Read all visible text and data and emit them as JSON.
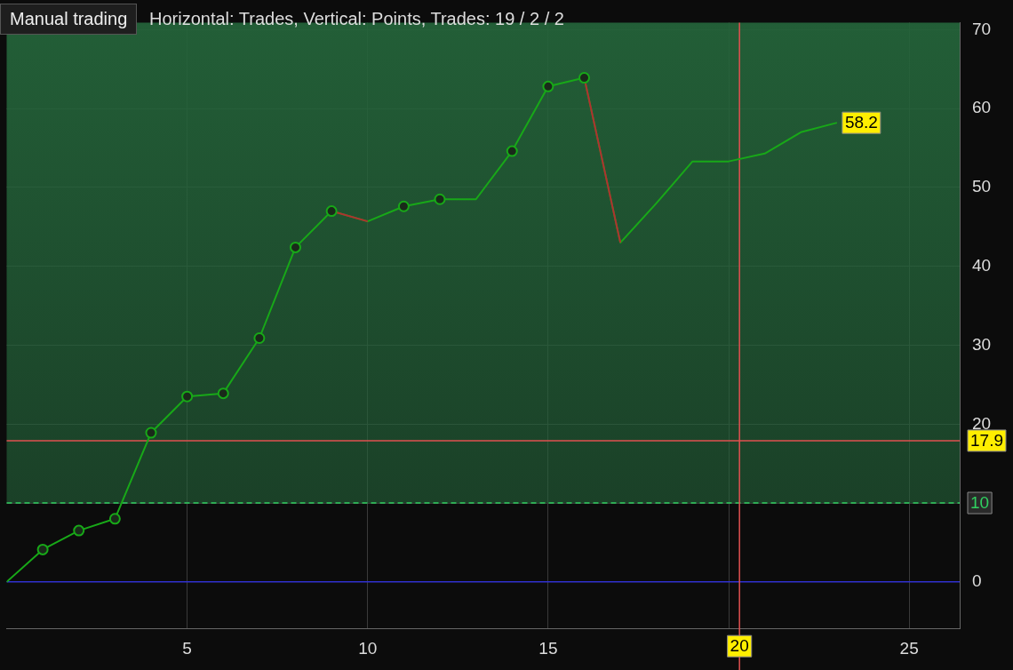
{
  "chart_data": {
    "type": "line",
    "title": "Manual trading",
    "subtitle": "Horizontal: Trades, Vertical: Points, Trades: 19 / 2 / 2",
    "x": [
      0,
      1,
      2,
      3,
      4,
      5,
      6,
      7,
      8,
      9,
      10,
      11,
      12,
      13,
      14,
      15,
      16,
      17,
      18,
      19,
      20,
      21,
      22,
      23
    ],
    "series": [
      {
        "type": "line",
        "color": "#18a818",
        "marker": "none",
        "value_labels": [
          null,
          null,
          null,
          null,
          null,
          null,
          null,
          null,
          null,
          null,
          null,
          null,
          null,
          null,
          null,
          null,
          null,
          null,
          null,
          null,
          null,
          null,
          null,
          "58.2"
        ],
        "values": [
          0,
          4.1,
          6.5,
          8.0,
          18.9,
          23.5,
          23.9,
          30.9,
          42.4,
          47.0,
          45.7,
          47.6,
          48.5,
          48.5,
          54.6,
          62.8,
          63.9,
          43.0,
          48.0,
          53.3,
          53.3,
          54.3,
          57.0,
          58.2
        ]
      },
      {
        "type": "line",
        "color": "#b03030",
        "marker": "none",
        "values": [
          null,
          null,
          null,
          null,
          null,
          null,
          null,
          null,
          null,
          47.0,
          45.7,
          null,
          null,
          null,
          null,
          null,
          63.9,
          43.0,
          null,
          null,
          null,
          null,
          null,
          null
        ]
      },
      {
        "type": "scatter",
        "color": "#18a818",
        "marker": "circle",
        "x": [
          1,
          2,
          3,
          4,
          5,
          6,
          7,
          8,
          9,
          11,
          12,
          14,
          15,
          16
        ],
        "values": [
          4.1,
          6.5,
          8.0,
          18.9,
          23.5,
          23.9,
          30.9,
          42.4,
          47.0,
          47.6,
          48.5,
          54.6,
          62.8,
          63.9
        ]
      }
    ],
    "xlim": [
      0,
      26.4
    ],
    "xticks": [
      5,
      10,
      15,
      {
        "value": 20,
        "label": null
      },
      25
    ],
    "ylim": [
      -5.9,
      70.9
    ],
    "yticks": [
      0,
      10,
      20,
      30,
      40,
      50,
      60,
      70
    ],
    "grid": true,
    "legend": false,
    "bands": [
      {
        "axis": "y",
        "from": 10,
        "to": 70.9,
        "color": "#24643a"
      }
    ],
    "ref_lines": [
      {
        "axis": "y",
        "value": 17.9,
        "label": "17.9",
        "color": "#e05050",
        "line_style": "solid"
      },
      {
        "axis": "y",
        "value": 10,
        "label": "10",
        "color": "#30d060",
        "line_style": "dashed"
      },
      {
        "axis": "y",
        "value": 0,
        "color": "#3030d0",
        "line_style": "solid"
      },
      {
        "axis": "x",
        "value": 20.3,
        "label": "20",
        "color": "#e05050",
        "line_style": "solid"
      }
    ]
  }
}
